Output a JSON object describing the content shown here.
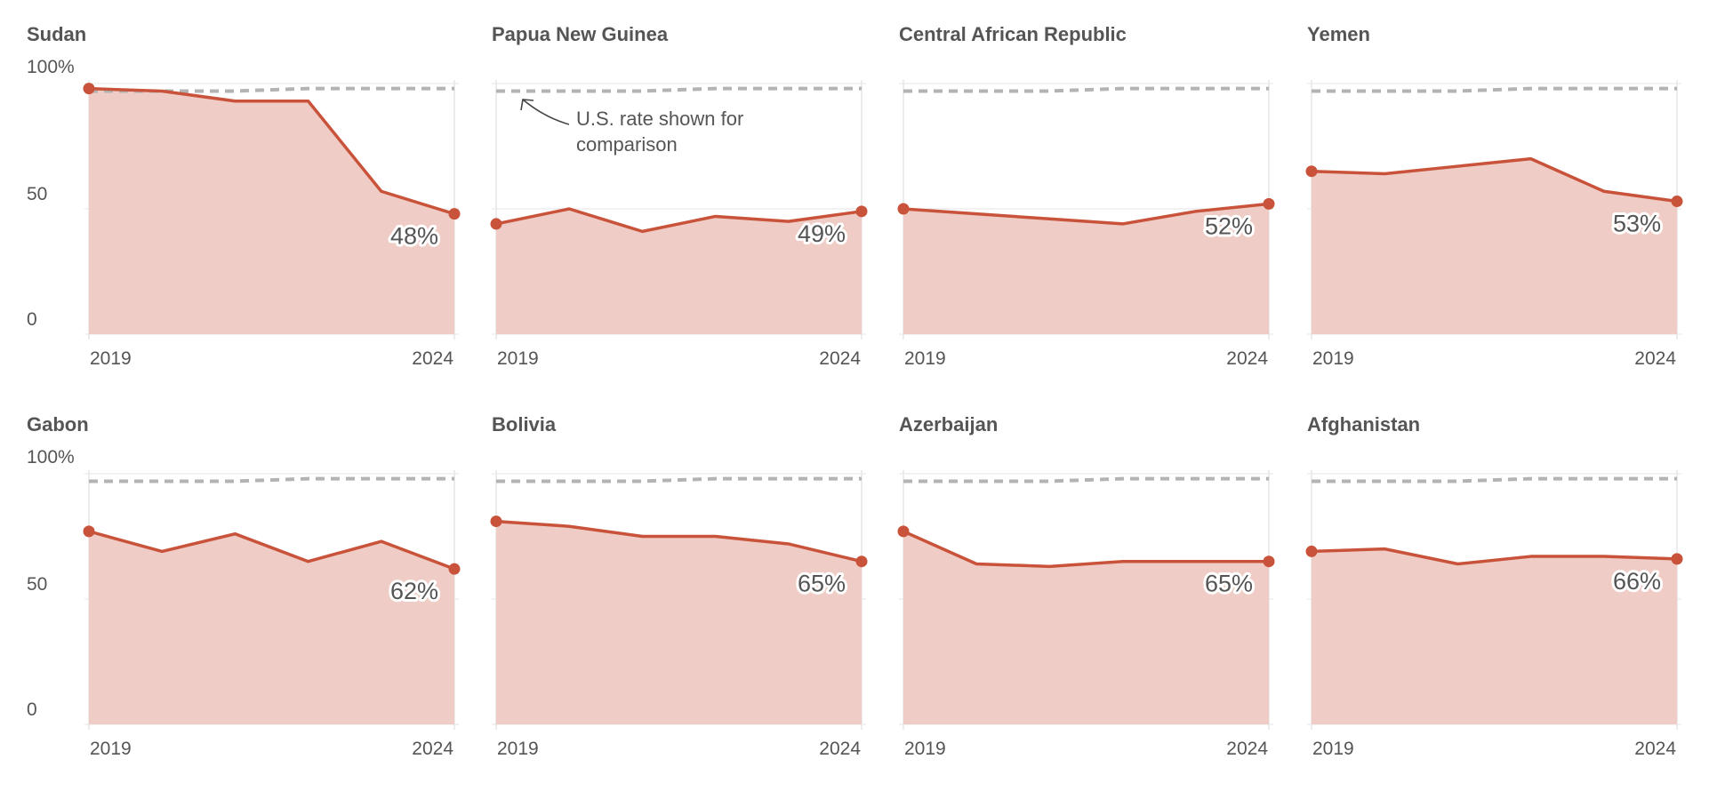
{
  "colors": {
    "line": "#c9533a",
    "area": "#efccc5",
    "reference": "#b3b3b3",
    "grid": "#e6e6e6",
    "text": "#555555"
  },
  "annotation": {
    "text_line1": "U.S. rate shown for",
    "text_line2": "comparison"
  },
  "chart_data": [
    {
      "type": "area",
      "title": "Sudan",
      "x": [
        2019,
        2020,
        2021,
        2022,
        2023,
        2024
      ],
      "xticks": [
        "2019",
        "2024"
      ],
      "yticks": [
        "0",
        "50",
        "100%"
      ],
      "ylim": [
        0,
        100
      ],
      "series": [
        {
          "values": [
            98,
            97,
            93,
            93,
            57,
            48
          ]
        }
      ],
      "reference": [
        97,
        97,
        97,
        98,
        98,
        98
      ],
      "end_label": "48%"
    },
    {
      "type": "area",
      "title": "Papua New Guinea",
      "x": [
        2019,
        2020,
        2021,
        2022,
        2023,
        2024
      ],
      "xticks": [
        "2019",
        "2024"
      ],
      "yticks": [
        "0",
        "50",
        "100%"
      ],
      "ylim": [
        0,
        100
      ],
      "series": [
        {
          "values": [
            44,
            50,
            41,
            47,
            45,
            49
          ]
        }
      ],
      "reference": [
        97,
        97,
        97,
        98,
        98,
        98
      ],
      "end_label": "49%"
    },
    {
      "type": "area",
      "title": "Central African Republic",
      "x": [
        2019,
        2020,
        2021,
        2022,
        2023,
        2024
      ],
      "xticks": [
        "2019",
        "2024"
      ],
      "yticks": [
        "0",
        "50",
        "100%"
      ],
      "ylim": [
        0,
        100
      ],
      "series": [
        {
          "values": [
            50,
            48,
            46,
            44,
            49,
            52
          ]
        }
      ],
      "reference": [
        97,
        97,
        97,
        98,
        98,
        98
      ],
      "end_label": "52%"
    },
    {
      "type": "area",
      "title": "Yemen",
      "x": [
        2019,
        2020,
        2021,
        2022,
        2023,
        2024
      ],
      "xticks": [
        "2019",
        "2024"
      ],
      "yticks": [
        "0",
        "50",
        "100%"
      ],
      "ylim": [
        0,
        100
      ],
      "series": [
        {
          "values": [
            65,
            64,
            67,
            70,
            57,
            53
          ]
        }
      ],
      "reference": [
        97,
        97,
        97,
        98,
        98,
        98
      ],
      "end_label": "53%"
    },
    {
      "type": "area",
      "title": "Gabon",
      "x": [
        2019,
        2020,
        2021,
        2022,
        2023,
        2024
      ],
      "xticks": [
        "2019",
        "2024"
      ],
      "yticks": [
        "0",
        "50",
        "100%"
      ],
      "ylim": [
        0,
        100
      ],
      "series": [
        {
          "values": [
            77,
            69,
            76,
            65,
            73,
            62
          ]
        }
      ],
      "reference": [
        97,
        97,
        97,
        98,
        98,
        98
      ],
      "end_label": "62%"
    },
    {
      "type": "area",
      "title": "Bolivia",
      "x": [
        2019,
        2020,
        2021,
        2022,
        2023,
        2024
      ],
      "xticks": [
        "2019",
        "2024"
      ],
      "yticks": [
        "0",
        "50",
        "100%"
      ],
      "ylim": [
        0,
        100
      ],
      "series": [
        {
          "values": [
            81,
            79,
            75,
            75,
            72,
            65
          ]
        }
      ],
      "reference": [
        97,
        97,
        97,
        98,
        98,
        98
      ],
      "end_label": "65%"
    },
    {
      "type": "area",
      "title": "Azerbaijan",
      "x": [
        2019,
        2020,
        2021,
        2022,
        2023,
        2024
      ],
      "xticks": [
        "2019",
        "2024"
      ],
      "yticks": [
        "0",
        "50",
        "100%"
      ],
      "ylim": [
        0,
        100
      ],
      "series": [
        {
          "values": [
            77,
            64,
            63,
            65,
            65,
            65
          ]
        }
      ],
      "reference": [
        97,
        97,
        97,
        98,
        98,
        98
      ],
      "end_label": "65%"
    },
    {
      "type": "area",
      "title": "Afghanistan",
      "x": [
        2019,
        2020,
        2021,
        2022,
        2023,
        2024
      ],
      "xticks": [
        "2019",
        "2024"
      ],
      "yticks": [
        "0",
        "50",
        "100%"
      ],
      "ylim": [
        0,
        100
      ],
      "series": [
        {
          "values": [
            69,
            70,
            64,
            67,
            67,
            66
          ]
        }
      ],
      "reference": [
        97,
        97,
        97,
        98,
        98,
        98
      ],
      "end_label": "66%"
    }
  ]
}
